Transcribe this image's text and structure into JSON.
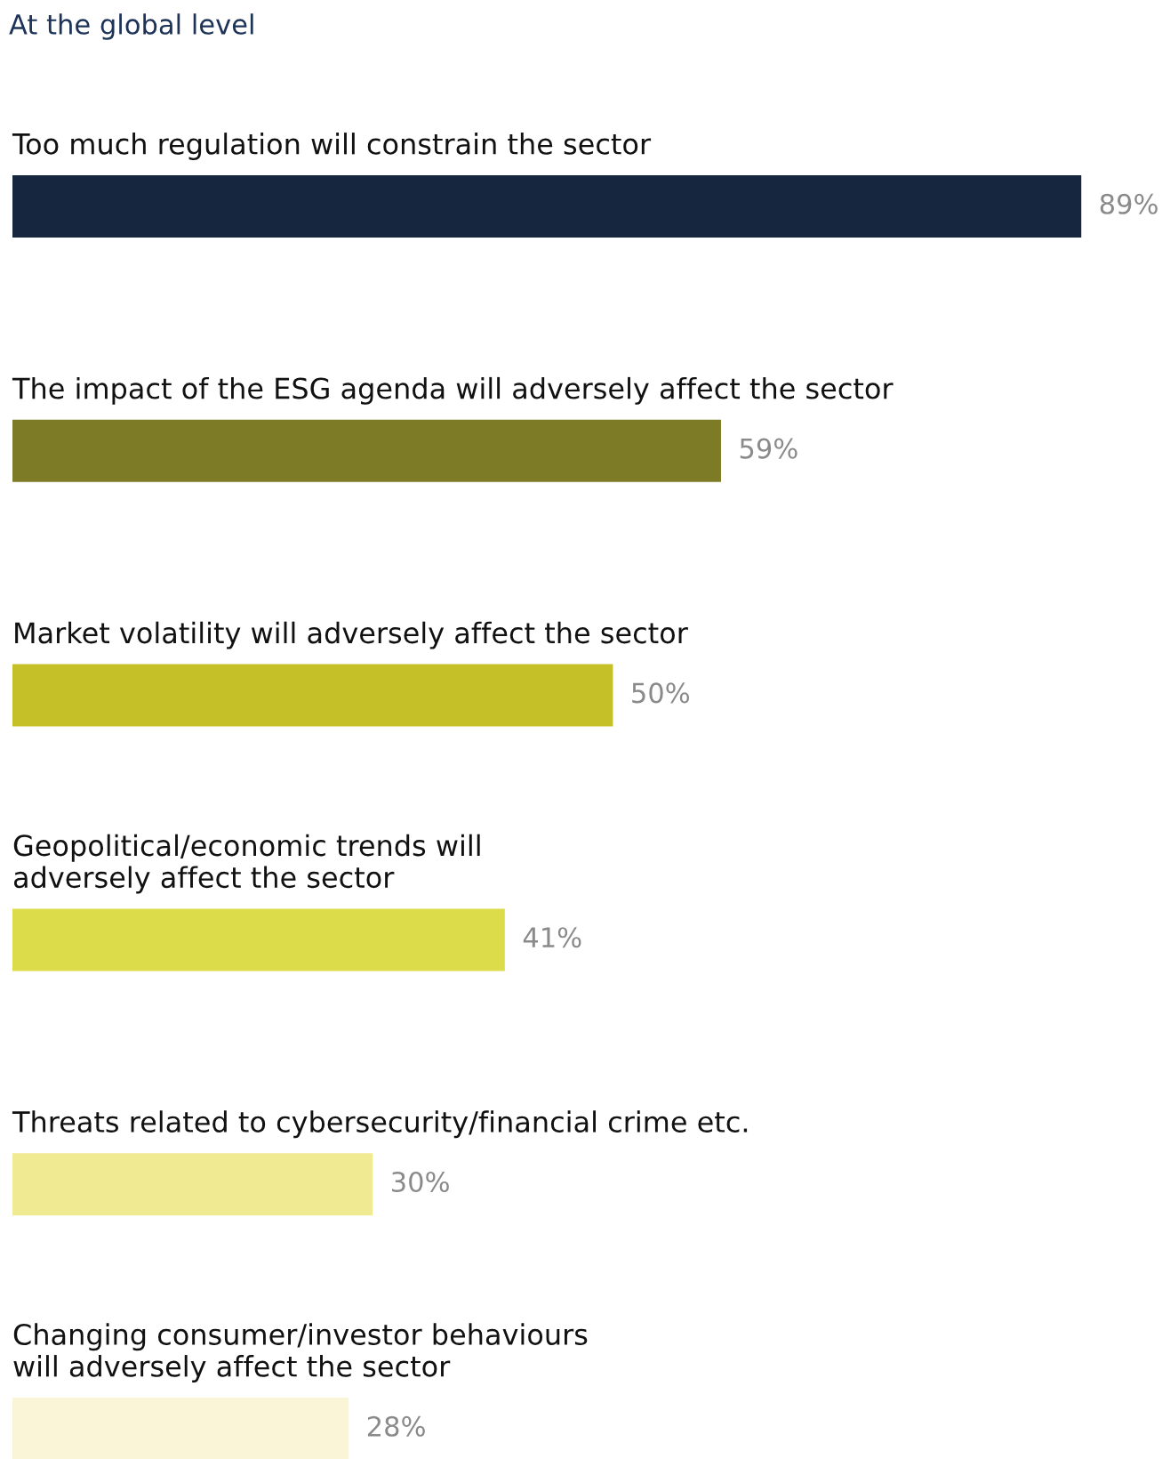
{
  "chart_data": {
    "type": "bar",
    "orientation": "horizontal",
    "title": "At the global level",
    "categories": [
      "Too much regulation will constrain the sector",
      "The impact of the ESG agenda will adversely affect the sector",
      "Market volatility will adversely affect the sector",
      "Geopolitical/economic trends will\nadversely affect the sector",
      "Threats related to cybersecurity/financial crime etc.",
      "Changing consumer/investor behaviours\nwill adversely affect the sector"
    ],
    "values": [
      89,
      59,
      50,
      41,
      30,
      28
    ],
    "value_labels": [
      "89%",
      "59%",
      "50%",
      "41%",
      "30%",
      "28%"
    ],
    "colors": [
      "#16263f",
      "#7d7b26",
      "#c5bf28",
      "#dcdc4a",
      "#f0ea92",
      "#fbf5d8"
    ]
  }
}
